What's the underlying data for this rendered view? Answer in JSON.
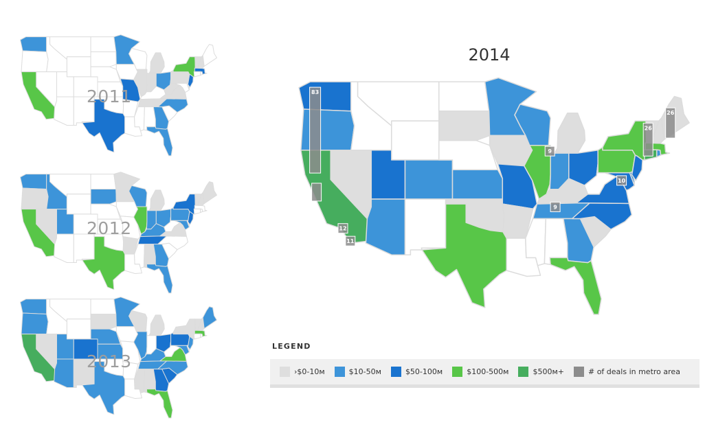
{
  "colors": {
    "none": "#ffffff",
    "border": "#dcdcdc",
    "c0": "#dedede",
    "c1": "#3d94d9",
    "c2": "#1973cf",
    "c3": "#58c648",
    "c4": "#46ad5e",
    "metro": "#8c8c8c"
  },
  "maps": [
    {
      "year": "2011",
      "states": {
        "WA": "c1",
        "CA": "c3",
        "TX": "c2",
        "MN": "c1",
        "IL": "c0",
        "IN": "c0",
        "OH": "c1",
        "MI": "c0",
        "WV": "c0",
        "MO": "c2",
        "NY": "c3",
        "MA": "c2",
        "NJ": "c2",
        "PA": "c0",
        "VA": "c0",
        "NC": "c1",
        "TN": "c0",
        "GA": "c1",
        "FL": "c1",
        "VT": "c0",
        "NH": "c0"
      }
    },
    {
      "year": "2012",
      "states": {
        "WA": "c1",
        "CA": "c3",
        "OR": "c0",
        "NV": "c0",
        "ID": "c1",
        "UT": "c1",
        "TX": "c3",
        "SD": "c1",
        "MN": "c0",
        "WI": "c1",
        "IL": "c3",
        "IN": "c1",
        "OH": "c1",
        "MI": "c0",
        "PA": "c1",
        "NY": "c2",
        "NJ": "c2",
        "MD": "c1",
        "VA": "c0",
        "KY": "c1",
        "TN": "c2",
        "GA": "c1",
        "FL": "c1",
        "VT": "c0",
        "NH": "c0",
        "ME": "c0",
        "AR": "c0",
        "AL": "c0"
      }
    },
    {
      "year": "2013",
      "states": {
        "WA": "c1",
        "OR": "c1",
        "CA": "c4",
        "NV": "c0",
        "AZ": "c1",
        "UT": "c1",
        "CO": "c2",
        "NM": "c0",
        "TX": "c1",
        "SD": "c0",
        "NE": "c1",
        "KS": "c1",
        "MN": "c1",
        "WI": "c0",
        "IL": "c1",
        "OH": "c2",
        "PA": "c2",
        "NY": "c0",
        "NJ": "c1",
        "MD": "c1",
        "VA": "c3",
        "NC": "c1",
        "SC": "c2",
        "GA": "c2",
        "TN": "c1",
        "FL": "c3",
        "ME": "c1",
        "MA": "c3",
        "VT": "c0",
        "NH": "c0",
        "MI": "c0",
        "MS": "c0",
        "AL": "c0",
        "KY": "c1"
      }
    },
    {
      "year": "2014",
      "states": {
        "WA": "c2",
        "OR": "c1",
        "CA": "c4",
        "NV": "c0",
        "AZ": "c1",
        "UT": "c2",
        "CO": "c1",
        "SD": "c0",
        "KS": "c1",
        "MO": "c2",
        "MN": "c1",
        "WI": "c1",
        "IA": "c0",
        "IL": "c3",
        "IN": "c1",
        "OH": "c2",
        "MI": "c0",
        "PA": "c3",
        "NY": "c3",
        "NJ": "c2",
        "MD": "c2",
        "VA": "c2",
        "NC": "c2",
        "SC": "c0",
        "GA": "c1",
        "TN": "c1",
        "KY": "c0",
        "FL": "c3",
        "TX": "c3",
        "OK": "c0",
        "AR": "c0",
        "CT": "c4",
        "MA": "c3",
        "RI": "c1",
        "VT": "c0",
        "NH": "c0",
        "ME": "c0",
        "DE": "c1"
      },
      "metros": [
        {
          "id": "seattle",
          "label": "83",
          "lon": -122.3,
          "lat": 47.6
        },
        {
          "id": "sf-bay",
          "label": "",
          "lon": -122.2,
          "lat": 37.5
        },
        {
          "id": "los-angeles",
          "label": "12",
          "lon": -118.2,
          "lat": 34.0
        },
        {
          "id": "san-diego",
          "label": "11",
          "lon": -117.1,
          "lat": 32.7
        },
        {
          "id": "chicago",
          "label": "9",
          "lon": -87.6,
          "lat": 41.9
        },
        {
          "id": "nashville",
          "label": "9",
          "lon": -86.8,
          "lat": 36.2
        },
        {
          "id": "washington-dc",
          "label": "10",
          "lon": -77.0,
          "lat": 38.9
        },
        {
          "id": "new-york",
          "label": "26",
          "lon": -74.0,
          "lat": 40.7
        },
        {
          "id": "boston",
          "label": "26",
          "lon": -71.1,
          "lat": 42.4
        }
      ]
    }
  ],
  "legend": {
    "title": "LEGEND",
    "items": [
      {
        "label": "›$0-10м",
        "color": "#dedede"
      },
      {
        "label": "$10-50м",
        "color": "#3d94d9"
      },
      {
        "label": "$50-100м",
        "color": "#1973cf"
      },
      {
        "label": "$100-500м",
        "color": "#58c648"
      },
      {
        "label": "$500м+",
        "color": "#46ad5e"
      },
      {
        "label": "# of deals in metro area",
        "color": "#8c8c8c"
      }
    ]
  }
}
